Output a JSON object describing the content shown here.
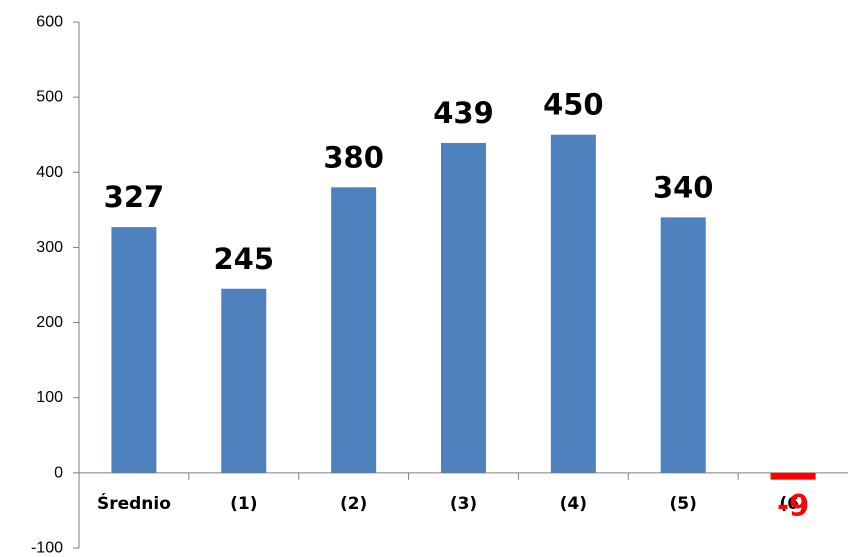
{
  "chart_data": {
    "type": "bar",
    "categories": [
      "Średnio",
      "(1)",
      "(2)",
      "(3)",
      "(4)",
      "(5)",
      "(6)"
    ],
    "values": [
      327,
      245,
      380,
      439,
      450,
      340,
      -9
    ],
    "data_labels": [
      "327",
      "245",
      "380",
      "439",
      "450",
      "340",
      "-9"
    ],
    "ylim": [
      -100,
      600
    ],
    "yticks": [
      "-100",
      "0",
      "100",
      "200",
      "300",
      "400",
      "500",
      "600"
    ],
    "ytick_values": [
      -100,
      0,
      100,
      200,
      300,
      400,
      500,
      600
    ],
    "title": "",
    "xlabel": "",
    "ylabel": "",
    "grid": false,
    "legend": "none",
    "colors": {
      "positive_bar": "#4F81BD",
      "negative_bar": "#FF0000",
      "positive_label": "#000000",
      "negative_label": "#FF0000",
      "axis": "#7F7F7F"
    }
  }
}
